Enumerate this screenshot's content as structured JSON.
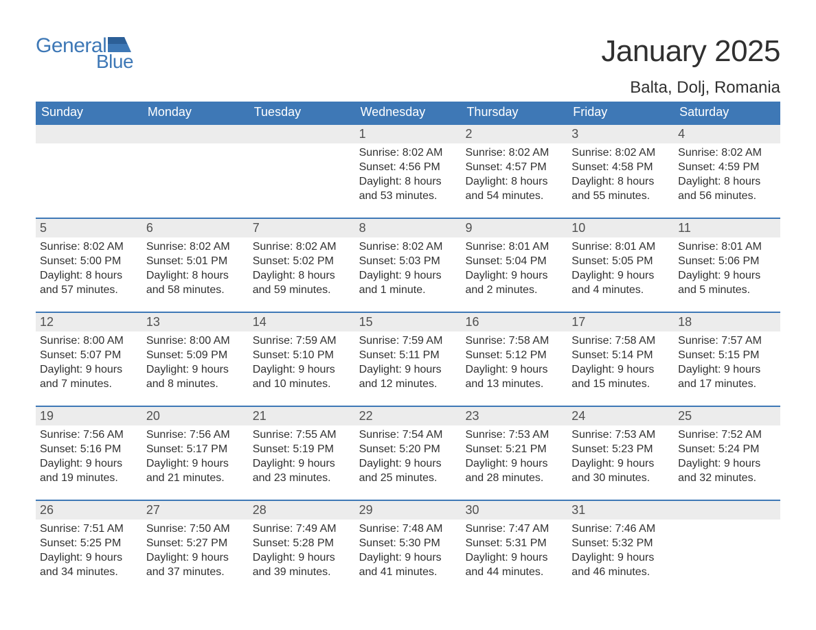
{
  "logo": {
    "text1": "General",
    "text2": "Blue",
    "brand_color": "#3e78b6"
  },
  "title": "January 2025",
  "location": "Balta, Dolj, Romania",
  "colors": {
    "header_bg": "#3e78b6",
    "header_text": "#ffffff",
    "daynum_bg": "#ececec",
    "daynum_text": "#505050",
    "body_text": "#303030",
    "row_border": "#3e78b6",
    "page_bg": "#ffffff"
  },
  "fonts": {
    "title_size": 44,
    "location_size": 24,
    "weekday_size": 18,
    "daynum_size": 18,
    "body_size": 16
  },
  "weekdays": [
    "Sunday",
    "Monday",
    "Tuesday",
    "Wednesday",
    "Thursday",
    "Friday",
    "Saturday"
  ],
  "weeks": [
    [
      {
        "num": "",
        "lines": []
      },
      {
        "num": "",
        "lines": []
      },
      {
        "num": "",
        "lines": []
      },
      {
        "num": "1",
        "lines": [
          "Sunrise: 8:02 AM",
          "Sunset: 4:56 PM",
          "Daylight: 8 hours",
          "and 53 minutes."
        ]
      },
      {
        "num": "2",
        "lines": [
          "Sunrise: 8:02 AM",
          "Sunset: 4:57 PM",
          "Daylight: 8 hours",
          "and 54 minutes."
        ]
      },
      {
        "num": "3",
        "lines": [
          "Sunrise: 8:02 AM",
          "Sunset: 4:58 PM",
          "Daylight: 8 hours",
          "and 55 minutes."
        ]
      },
      {
        "num": "4",
        "lines": [
          "Sunrise: 8:02 AM",
          "Sunset: 4:59 PM",
          "Daylight: 8 hours",
          "and 56 minutes."
        ]
      }
    ],
    [
      {
        "num": "5",
        "lines": [
          "Sunrise: 8:02 AM",
          "Sunset: 5:00 PM",
          "Daylight: 8 hours",
          "and 57 minutes."
        ]
      },
      {
        "num": "6",
        "lines": [
          "Sunrise: 8:02 AM",
          "Sunset: 5:01 PM",
          "Daylight: 8 hours",
          "and 58 minutes."
        ]
      },
      {
        "num": "7",
        "lines": [
          "Sunrise: 8:02 AM",
          "Sunset: 5:02 PM",
          "Daylight: 8 hours",
          "and 59 minutes."
        ]
      },
      {
        "num": "8",
        "lines": [
          "Sunrise: 8:02 AM",
          "Sunset: 5:03 PM",
          "Daylight: 9 hours",
          "and 1 minute."
        ]
      },
      {
        "num": "9",
        "lines": [
          "Sunrise: 8:01 AM",
          "Sunset: 5:04 PM",
          "Daylight: 9 hours",
          "and 2 minutes."
        ]
      },
      {
        "num": "10",
        "lines": [
          "Sunrise: 8:01 AM",
          "Sunset: 5:05 PM",
          "Daylight: 9 hours",
          "and 4 minutes."
        ]
      },
      {
        "num": "11",
        "lines": [
          "Sunrise: 8:01 AM",
          "Sunset: 5:06 PM",
          "Daylight: 9 hours",
          "and 5 minutes."
        ]
      }
    ],
    [
      {
        "num": "12",
        "lines": [
          "Sunrise: 8:00 AM",
          "Sunset: 5:07 PM",
          "Daylight: 9 hours",
          "and 7 minutes."
        ]
      },
      {
        "num": "13",
        "lines": [
          "Sunrise: 8:00 AM",
          "Sunset: 5:09 PM",
          "Daylight: 9 hours",
          "and 8 minutes."
        ]
      },
      {
        "num": "14",
        "lines": [
          "Sunrise: 7:59 AM",
          "Sunset: 5:10 PM",
          "Daylight: 9 hours",
          "and 10 minutes."
        ]
      },
      {
        "num": "15",
        "lines": [
          "Sunrise: 7:59 AM",
          "Sunset: 5:11 PM",
          "Daylight: 9 hours",
          "and 12 minutes."
        ]
      },
      {
        "num": "16",
        "lines": [
          "Sunrise: 7:58 AM",
          "Sunset: 5:12 PM",
          "Daylight: 9 hours",
          "and 13 minutes."
        ]
      },
      {
        "num": "17",
        "lines": [
          "Sunrise: 7:58 AM",
          "Sunset: 5:14 PM",
          "Daylight: 9 hours",
          "and 15 minutes."
        ]
      },
      {
        "num": "18",
        "lines": [
          "Sunrise: 7:57 AM",
          "Sunset: 5:15 PM",
          "Daylight: 9 hours",
          "and 17 minutes."
        ]
      }
    ],
    [
      {
        "num": "19",
        "lines": [
          "Sunrise: 7:56 AM",
          "Sunset: 5:16 PM",
          "Daylight: 9 hours",
          "and 19 minutes."
        ]
      },
      {
        "num": "20",
        "lines": [
          "Sunrise: 7:56 AM",
          "Sunset: 5:17 PM",
          "Daylight: 9 hours",
          "and 21 minutes."
        ]
      },
      {
        "num": "21",
        "lines": [
          "Sunrise: 7:55 AM",
          "Sunset: 5:19 PM",
          "Daylight: 9 hours",
          "and 23 minutes."
        ]
      },
      {
        "num": "22",
        "lines": [
          "Sunrise: 7:54 AM",
          "Sunset: 5:20 PM",
          "Daylight: 9 hours",
          "and 25 minutes."
        ]
      },
      {
        "num": "23",
        "lines": [
          "Sunrise: 7:53 AM",
          "Sunset: 5:21 PM",
          "Daylight: 9 hours",
          "and 28 minutes."
        ]
      },
      {
        "num": "24",
        "lines": [
          "Sunrise: 7:53 AM",
          "Sunset: 5:23 PM",
          "Daylight: 9 hours",
          "and 30 minutes."
        ]
      },
      {
        "num": "25",
        "lines": [
          "Sunrise: 7:52 AM",
          "Sunset: 5:24 PM",
          "Daylight: 9 hours",
          "and 32 minutes."
        ]
      }
    ],
    [
      {
        "num": "26",
        "lines": [
          "Sunrise: 7:51 AM",
          "Sunset: 5:25 PM",
          "Daylight: 9 hours",
          "and 34 minutes."
        ]
      },
      {
        "num": "27",
        "lines": [
          "Sunrise: 7:50 AM",
          "Sunset: 5:27 PM",
          "Daylight: 9 hours",
          "and 37 minutes."
        ]
      },
      {
        "num": "28",
        "lines": [
          "Sunrise: 7:49 AM",
          "Sunset: 5:28 PM",
          "Daylight: 9 hours",
          "and 39 minutes."
        ]
      },
      {
        "num": "29",
        "lines": [
          "Sunrise: 7:48 AM",
          "Sunset: 5:30 PM",
          "Daylight: 9 hours",
          "and 41 minutes."
        ]
      },
      {
        "num": "30",
        "lines": [
          "Sunrise: 7:47 AM",
          "Sunset: 5:31 PM",
          "Daylight: 9 hours",
          "and 44 minutes."
        ]
      },
      {
        "num": "31",
        "lines": [
          "Sunrise: 7:46 AM",
          "Sunset: 5:32 PM",
          "Daylight: 9 hours",
          "and 46 minutes."
        ]
      },
      {
        "num": "",
        "lines": []
      }
    ]
  ]
}
